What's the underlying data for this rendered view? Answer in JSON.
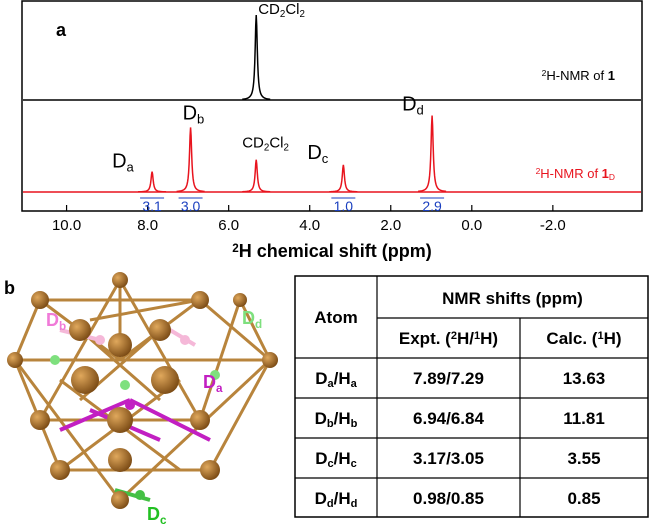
{
  "chart_data": {
    "type": "spectrum",
    "panel_label": "a",
    "xlabel": [
      "2",
      "H chemical shift (ppm)"
    ],
    "xlim": [
      11.1,
      -4.2
    ],
    "xticks": [
      {
        "value": 10,
        "label": "10.0"
      },
      {
        "value": 8,
        "label": "8.0"
      },
      {
        "value": 6,
        "label": "6.0"
      },
      {
        "value": 4,
        "label": "4.0"
      },
      {
        "value": 2,
        "label": "2.0"
      },
      {
        "value": 0,
        "label": "0.0"
      },
      {
        "value": -2,
        "label": "-2.0"
      }
    ],
    "ylim": [
      0,
      100
    ],
    "series": [
      {
        "label_parts": [
          "2",
          "H-NMR of ",
          "1"
        ],
        "color": "#000000",
        "peaks_ppm": [
          5.32
        ],
        "intensity": [
          100
        ],
        "peak_labels": [
          [
            "CD",
            "2",
            "Cl",
            "2"
          ]
        ]
      },
      {
        "label_parts": [
          "2",
          "H-NMR of ",
          "1",
          "D"
        ],
        "color": "#e8141e",
        "peaks_ppm": [
          7.89,
          6.94,
          5.32,
          3.17,
          0.98
        ],
        "intensity": [
          24,
          76,
          38,
          32,
          90
        ],
        "peak_labels": [
          [
            "D",
            "a"
          ],
          [
            "D",
            "b"
          ],
          [
            "CD",
            "2",
            "Cl",
            "2"
          ],
          [
            "D",
            "c"
          ],
          [
            "D",
            "d"
          ]
        ],
        "integrals": [
          "3.1",
          "3.0",
          null,
          "1.0",
          "2.9"
        ],
        "integral_color": "#1a3fbf"
      }
    ]
  },
  "panel_b": {
    "label": "b",
    "structure_labels": [
      {
        "parts": [
          "D",
          "b"
        ],
        "color": "#f07ad8"
      },
      {
        "parts": [
          "D",
          "d"
        ],
        "color": "#7ee07e"
      },
      {
        "parts": [
          "D",
          "a"
        ],
        "color": "#c21fc2"
      },
      {
        "parts": [
          "D",
          "c"
        ],
        "color": "#22c022"
      }
    ]
  },
  "table": {
    "atom_header": "Atom",
    "group_header": "NMR shifts (ppm)",
    "columns": [
      [
        "Expt. (",
        "2",
        "H/",
        "1",
        "H)"
      ],
      [
        "Calc. (",
        "1",
        "H)"
      ]
    ],
    "rows": [
      {
        "atom": [
          [
            "D",
            "a"
          ],
          [
            "/H",
            "a"
          ]
        ],
        "expt": "7.89/7.29",
        "calc": 13.63
      },
      {
        "atom": [
          [
            "D",
            "b"
          ],
          [
            "/H",
            "b"
          ]
        ],
        "expt": "6.94/6.84",
        "calc": 11.81
      },
      {
        "atom": [
          [
            "D",
            "c"
          ],
          [
            "/H",
            "c"
          ]
        ],
        "expt": "3.17/3.05",
        "calc": 3.55
      },
      {
        "atom": [
          [
            "D",
            "d"
          ],
          [
            "/H",
            "d"
          ]
        ],
        "expt": "0.98/0.85",
        "calc": 0.85
      }
    ]
  }
}
